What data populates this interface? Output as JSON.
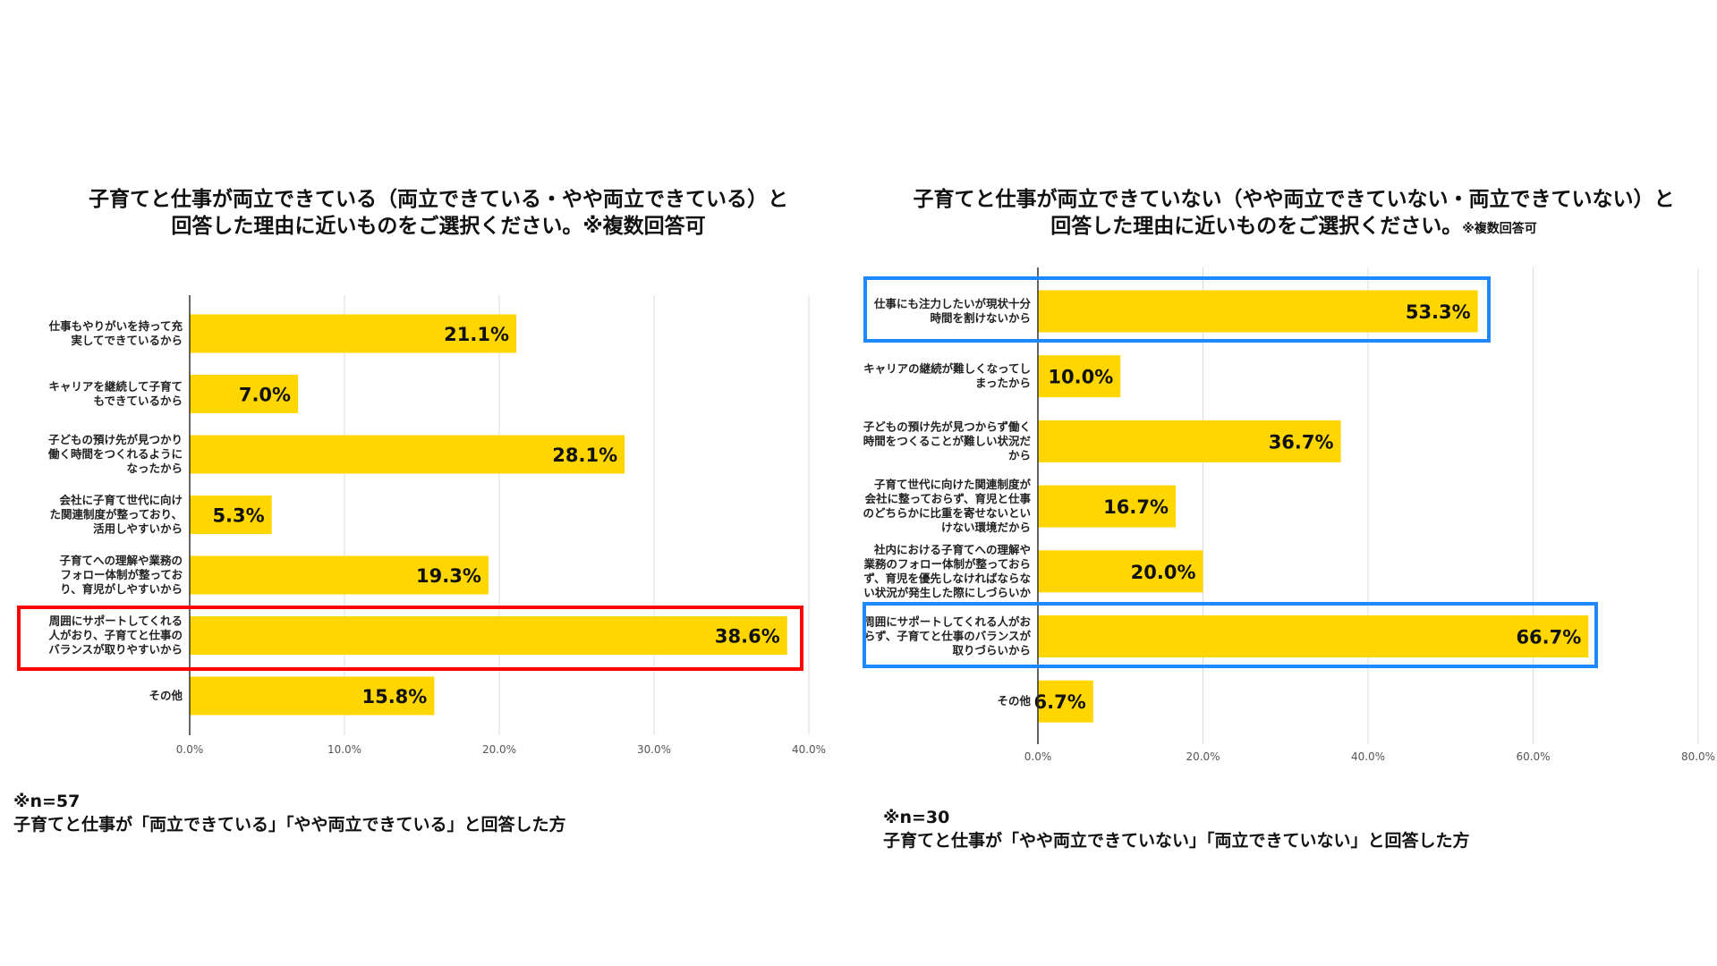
{
  "chart_data": [
    {
      "type": "bar",
      "orientation": "horizontal",
      "title_lines": [
        "子育てと仕事が両立できている（両立できている・やや両立できている）と",
        "回答した理由に近いものをご選択ください。※複数回答可"
      ],
      "title_small": "",
      "categories": [
        [
          "仕事もやりがいを持って充",
          "実してできているから"
        ],
        [
          "キャリアを継続して子育て",
          "もできているから"
        ],
        [
          "子どもの預け先が見つかり",
          "働く時間をつくれるように",
          "なったから"
        ],
        [
          "会社に子育て世代に向け",
          "た関連制度が整っており、",
          "活用しやすいから"
        ],
        [
          "子育てへの理解や業務の",
          "フォロー体制が整ってお",
          "り、育児がしやすいから"
        ],
        [
          "周囲にサポートしてくれる",
          "人がおり、子育てと仕事の",
          "バランスが取りやすいから"
        ],
        [
          "その他"
        ]
      ],
      "values": [
        21.1,
        7.0,
        28.1,
        5.3,
        19.3,
        38.6,
        15.8
      ],
      "data_labels": [
        "21.1%",
        "7.0%",
        "28.1%",
        "5.3%",
        "19.3%",
        "38.6%",
        "15.8%"
      ],
      "xlim": [
        0,
        40
      ],
      "ticks": [
        "0.0%",
        "10.0%",
        "20.0%",
        "30.0%",
        "40.0%"
      ],
      "grid": true,
      "bar_color": "#FFD600",
      "highlight_indices": [
        5
      ],
      "highlight_color": "#FF0000",
      "footnote": [
        "※n=57",
        "子育てと仕事が「両立できている」「やや両立できている」と回答した方"
      ]
    },
    {
      "type": "bar",
      "orientation": "horizontal",
      "title_lines": [
        "子育てと仕事が両立できていない（やや両立できていない・両立できていない）と",
        "回答した理由に近いものをご選択ください。"
      ],
      "title_small": "※複数回答可",
      "categories": [
        [
          "仕事にも注力したいが現状十分",
          "時間を割けないから"
        ],
        [
          "キャリアの継続が難しくなってし",
          "まったから"
        ],
        [
          "子どもの預け先が見つからず働く",
          "時間をつくることが難しい状況だ",
          "から"
        ],
        [
          "子育て世代に向けた関連制度が",
          "会社に整っておらず、育児と仕事",
          "のどちらかに比重を寄せないとい",
          "けない環境だから"
        ],
        [
          "社内における子育てへの理解や",
          "業務のフォロー体制が整っておら",
          "ず、育児を優先しなければならな",
          "い状況が発生した際にしづらいか"
        ],
        [
          "周囲にサポートしてくれる人がお",
          "らず、子育てと仕事のバランスが",
          "取りづらいから"
        ],
        [
          "その他"
        ]
      ],
      "values": [
        53.3,
        10.0,
        36.7,
        16.7,
        20.0,
        66.7,
        6.7
      ],
      "data_labels": [
        "53.3%",
        "10.0%",
        "36.7%",
        "16.7%",
        "20.0%",
        "66.7%",
        "6.7%"
      ],
      "xlim": [
        0,
        80
      ],
      "ticks": [
        "0.0%",
        "20.0%",
        "40.0%",
        "60.0%",
        "80.0%"
      ],
      "grid": true,
      "bar_color": "#FFD600",
      "highlight_indices": [
        0,
        5
      ],
      "highlight_color": "#1E88FF",
      "footnote": [
        "※n=30",
        "子育てと仕事が「やや両立できていない」「両立できていない」と回答した方"
      ]
    }
  ]
}
